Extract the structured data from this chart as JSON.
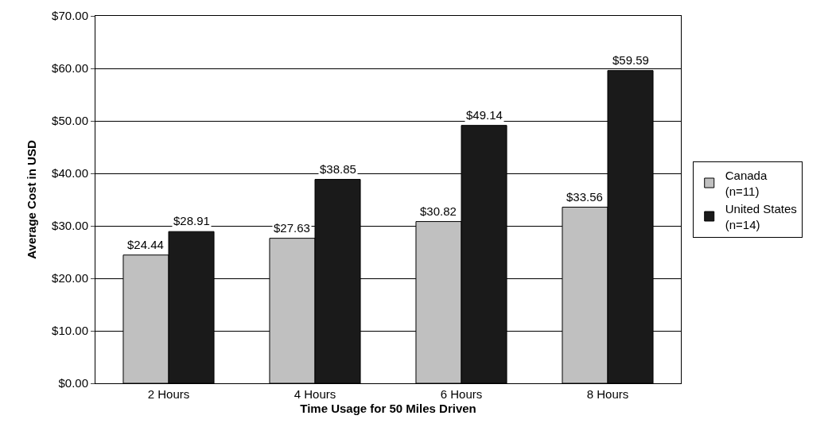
{
  "chart_data": {
    "type": "bar",
    "xlabel": "Time Usage for 50 Miles Driven",
    "ylabel": "Average Cost in USD",
    "categories": [
      "2 Hours",
      "4 Hours",
      "6 Hours",
      "8 Hours"
    ],
    "series": [
      {
        "name": "Canada\n(n=11)",
        "color": "#c0c0c0",
        "values": [
          24.44,
          27.63,
          30.82,
          33.56
        ],
        "value_labels": [
          "$24.44",
          "$27.63",
          "$30.82",
          "$33.56"
        ]
      },
      {
        "name": "United States\n(n=14)",
        "color": "#1a1a1a",
        "values": [
          28.91,
          38.85,
          49.14,
          59.59
        ],
        "value_labels": [
          "$28.91",
          "$38.85",
          "$49.14",
          "$59.59"
        ]
      }
    ],
    "ylim": [
      0,
      70
    ],
    "yticks": [
      {
        "value": 0,
        "label": "$0.00"
      },
      {
        "value": 10,
        "label": "$10.00"
      },
      {
        "value": 20,
        "label": "$20.00"
      },
      {
        "value": 30,
        "label": "$30.00"
      },
      {
        "value": 40,
        "label": "$40.00"
      },
      {
        "value": 50,
        "label": "$50.00"
      },
      {
        "value": 60,
        "label": "$60.00"
      },
      {
        "value": 70,
        "label": "$70.00"
      }
    ],
    "grid": "y",
    "legend": "right"
  }
}
